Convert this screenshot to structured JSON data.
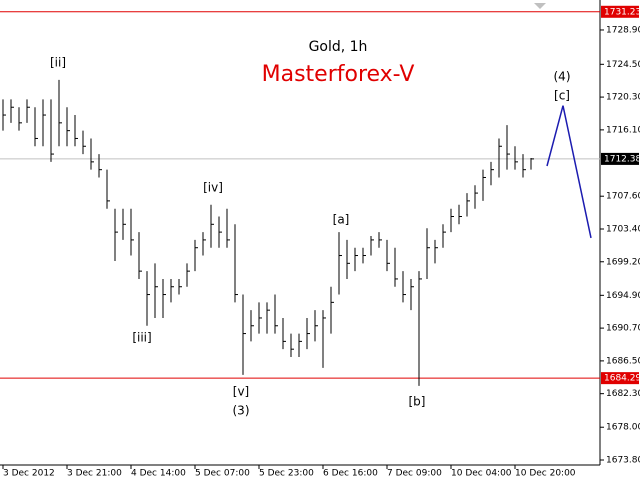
{
  "chart_data": {
    "type": "ohlc",
    "title": "Gold, 1h",
    "subtitle": "Masterforex-V",
    "categories": [
      "3 Dec 2012",
      null,
      null,
      null,
      null,
      null,
      null,
      null,
      "3 Dec 21:00",
      null,
      null,
      null,
      null,
      null,
      null,
      null,
      "4 Dec 14:00",
      null,
      null,
      null,
      null,
      null,
      null,
      null,
      "5 Dec 07:00",
      null,
      null,
      null,
      null,
      null,
      null,
      null,
      "5 Dec 23:00",
      null,
      null,
      null,
      null,
      null,
      null,
      null,
      "6 Dec 16:00",
      null,
      null,
      null,
      null,
      null,
      null,
      null,
      "7 Dec 09:00",
      null,
      null,
      null,
      null,
      null,
      null,
      null,
      "10 Dec 04:00",
      null,
      null,
      null,
      null,
      null,
      null,
      null,
      "10 Dec 20:00",
      null,
      null
    ],
    "high": [
      1720,
      1720,
      1719,
      1720,
      1719,
      1720,
      1720,
      1722.5,
      1719,
      1718,
      1716,
      1715,
      1713,
      1711,
      1706,
      1706,
      1706,
      1703,
      1698,
      1699,
      1697,
      1697,
      1697,
      1699,
      1702,
      1703,
      1706.5,
      1705,
      1706,
      1704,
      1695,
      1693,
      1694,
      1694,
      1695,
      1692,
      1690,
      1690,
      1692,
      1693,
      1693,
      1696,
      1703,
      1702,
      1701,
      1701,
      1702.5,
      1703,
      1702,
      1701,
      1698,
      1697,
      1698,
      1703.5,
      1702,
      1704,
      1706,
      1706.5,
      1708,
      1709,
      1711,
      1712,
      1715,
      1716.7,
      1714,
      1713,
      1712.5
    ],
    "low": [
      1716,
      1717,
      1716,
      1717,
      1714,
      1714,
      1712,
      1714,
      1714,
      1714,
      1713,
      1711,
      1710,
      1706,
      1699.3,
      1702,
      1700,
      1697,
      1691,
      1692,
      1692,
      1694,
      1695,
      1696,
      1698,
      1700,
      1701,
      1701,
      1701,
      1694,
      1684.7,
      1689,
      1690,
      1690,
      1690,
      1688,
      1687,
      1687,
      1688,
      1689,
      1685.6,
      1690,
      1695,
      1697,
      1698,
      1699,
      1700,
      1701,
      1698,
      1696,
      1694,
      1693,
      1683.3,
      1697,
      1699,
      1701,
      1703,
      1704,
      1705,
      1706,
      1707,
      1709,
      1710,
      1711,
      1711,
      1710,
      1711
    ],
    "close": [
      1718,
      1719,
      1717,
      1719,
      1715,
      1718,
      1713,
      1717,
      1716,
      1715,
      1714,
      1712,
      1711,
      1707,
      1703,
      1704,
      1702,
      1698,
      1695,
      1696,
      1695,
      1696,
      1696,
      1698,
      1701,
      1702,
      1704,
      1703,
      1702,
      1695,
      1690,
      1691,
      1692,
      1693,
      1691,
      1689,
      1688,
      1689,
      1690,
      1691,
      1692,
      1694,
      1700,
      1699,
      1700,
      1700,
      1702,
      1702,
      1699,
      1697,
      1695,
      1696,
      1697,
      1701,
      1701,
      1703,
      1705,
      1705,
      1707,
      1708,
      1710,
      1711,
      1714,
      1713,
      1712,
      1711,
      1712.38
    ],
    "color": "#000000",
    "ylim": [
      1673.16,
      1732.74
    ],
    "yticks": [
      {
        "value": 1728.9,
        "label": "1728.90"
      },
      {
        "value": 1724.5,
        "label": "1724.50"
      },
      {
        "value": 1720.3,
        "label": "1720.30"
      },
      {
        "value": 1716.1,
        "label": "1716.10"
      },
      {
        "value": 1707.6,
        "label": "1707.60"
      },
      {
        "value": 1703.4,
        "label": "1703.40"
      },
      {
        "value": 1699.2,
        "label": "1699.20"
      },
      {
        "value": 1694.9,
        "label": "1694.90"
      },
      {
        "value": 1690.7,
        "label": "1690.70"
      },
      {
        "value": 1686.5,
        "label": "1686.50"
      },
      {
        "value": 1682.3,
        "label": "1682.30"
      },
      {
        "value": 1678,
        "label": "1678.00"
      },
      {
        "value": 1673.8,
        "label": "1673.80"
      }
    ],
    "levels": [
      {
        "value": 1731.23,
        "color": "#e00000"
      },
      {
        "value": 1684.29,
        "color": "#e00000"
      }
    ],
    "current_price": {
      "value": 1712.38,
      "color": "#c0c0c0"
    },
    "projection": {
      "x": [
        68,
        70,
        73.5
      ],
      "values": [
        1711.47,
        1719.2,
        1702.25
      ],
      "color": "#1c1cb0"
    },
    "annotations": [
      "[ii]",
      "[iii]",
      "[iv]",
      "[v]",
      "(3)",
      "[a]",
      "[b]",
      "(4)",
      "[c]"
    ]
  }
}
